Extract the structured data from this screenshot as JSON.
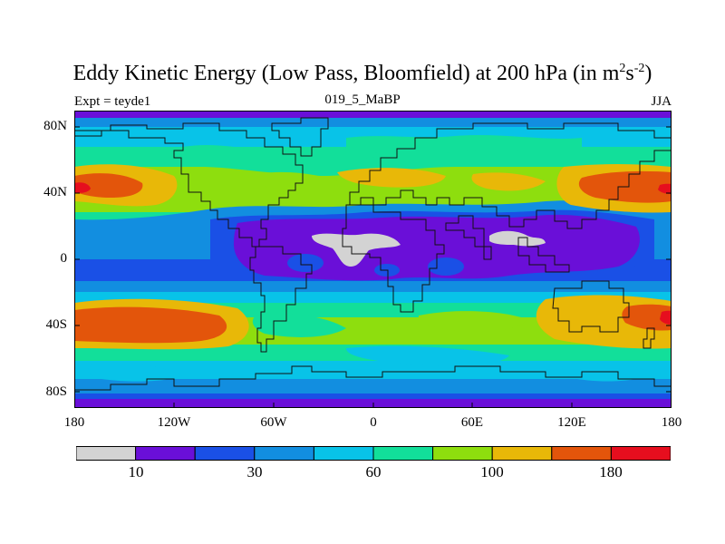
{
  "header": {
    "title_main": "Eddy Kinetic Energy (Low Pass, Bloomfield) at 200 hPa (in m",
    "title_sup1": "2",
    "title_mid": "s",
    "title_sup2": "-2",
    "title_end": ")",
    "experiment": "Expt = teyde1",
    "experiment_id": "019_5_MaBP",
    "season": "JJA"
  },
  "map": {
    "lat_ticks": [
      "80N",
      "40N",
      "0",
      "40S",
      "80S"
    ],
    "lon_ticks": [
      "180",
      "120W",
      "60W",
      "0",
      "60E",
      "120E",
      "180"
    ]
  },
  "legend": {
    "labels": [
      "10",
      "30",
      "60",
      "100",
      "180"
    ],
    "colors": [
      "#d3d3d3",
      "#6a0fd8",
      "#1a50e6",
      "#128ee0",
      "#08c3e8",
      "#12df9a",
      "#8ede0e",
      "#e8b808",
      "#e3550b",
      "#e60e1e"
    ]
  }
}
